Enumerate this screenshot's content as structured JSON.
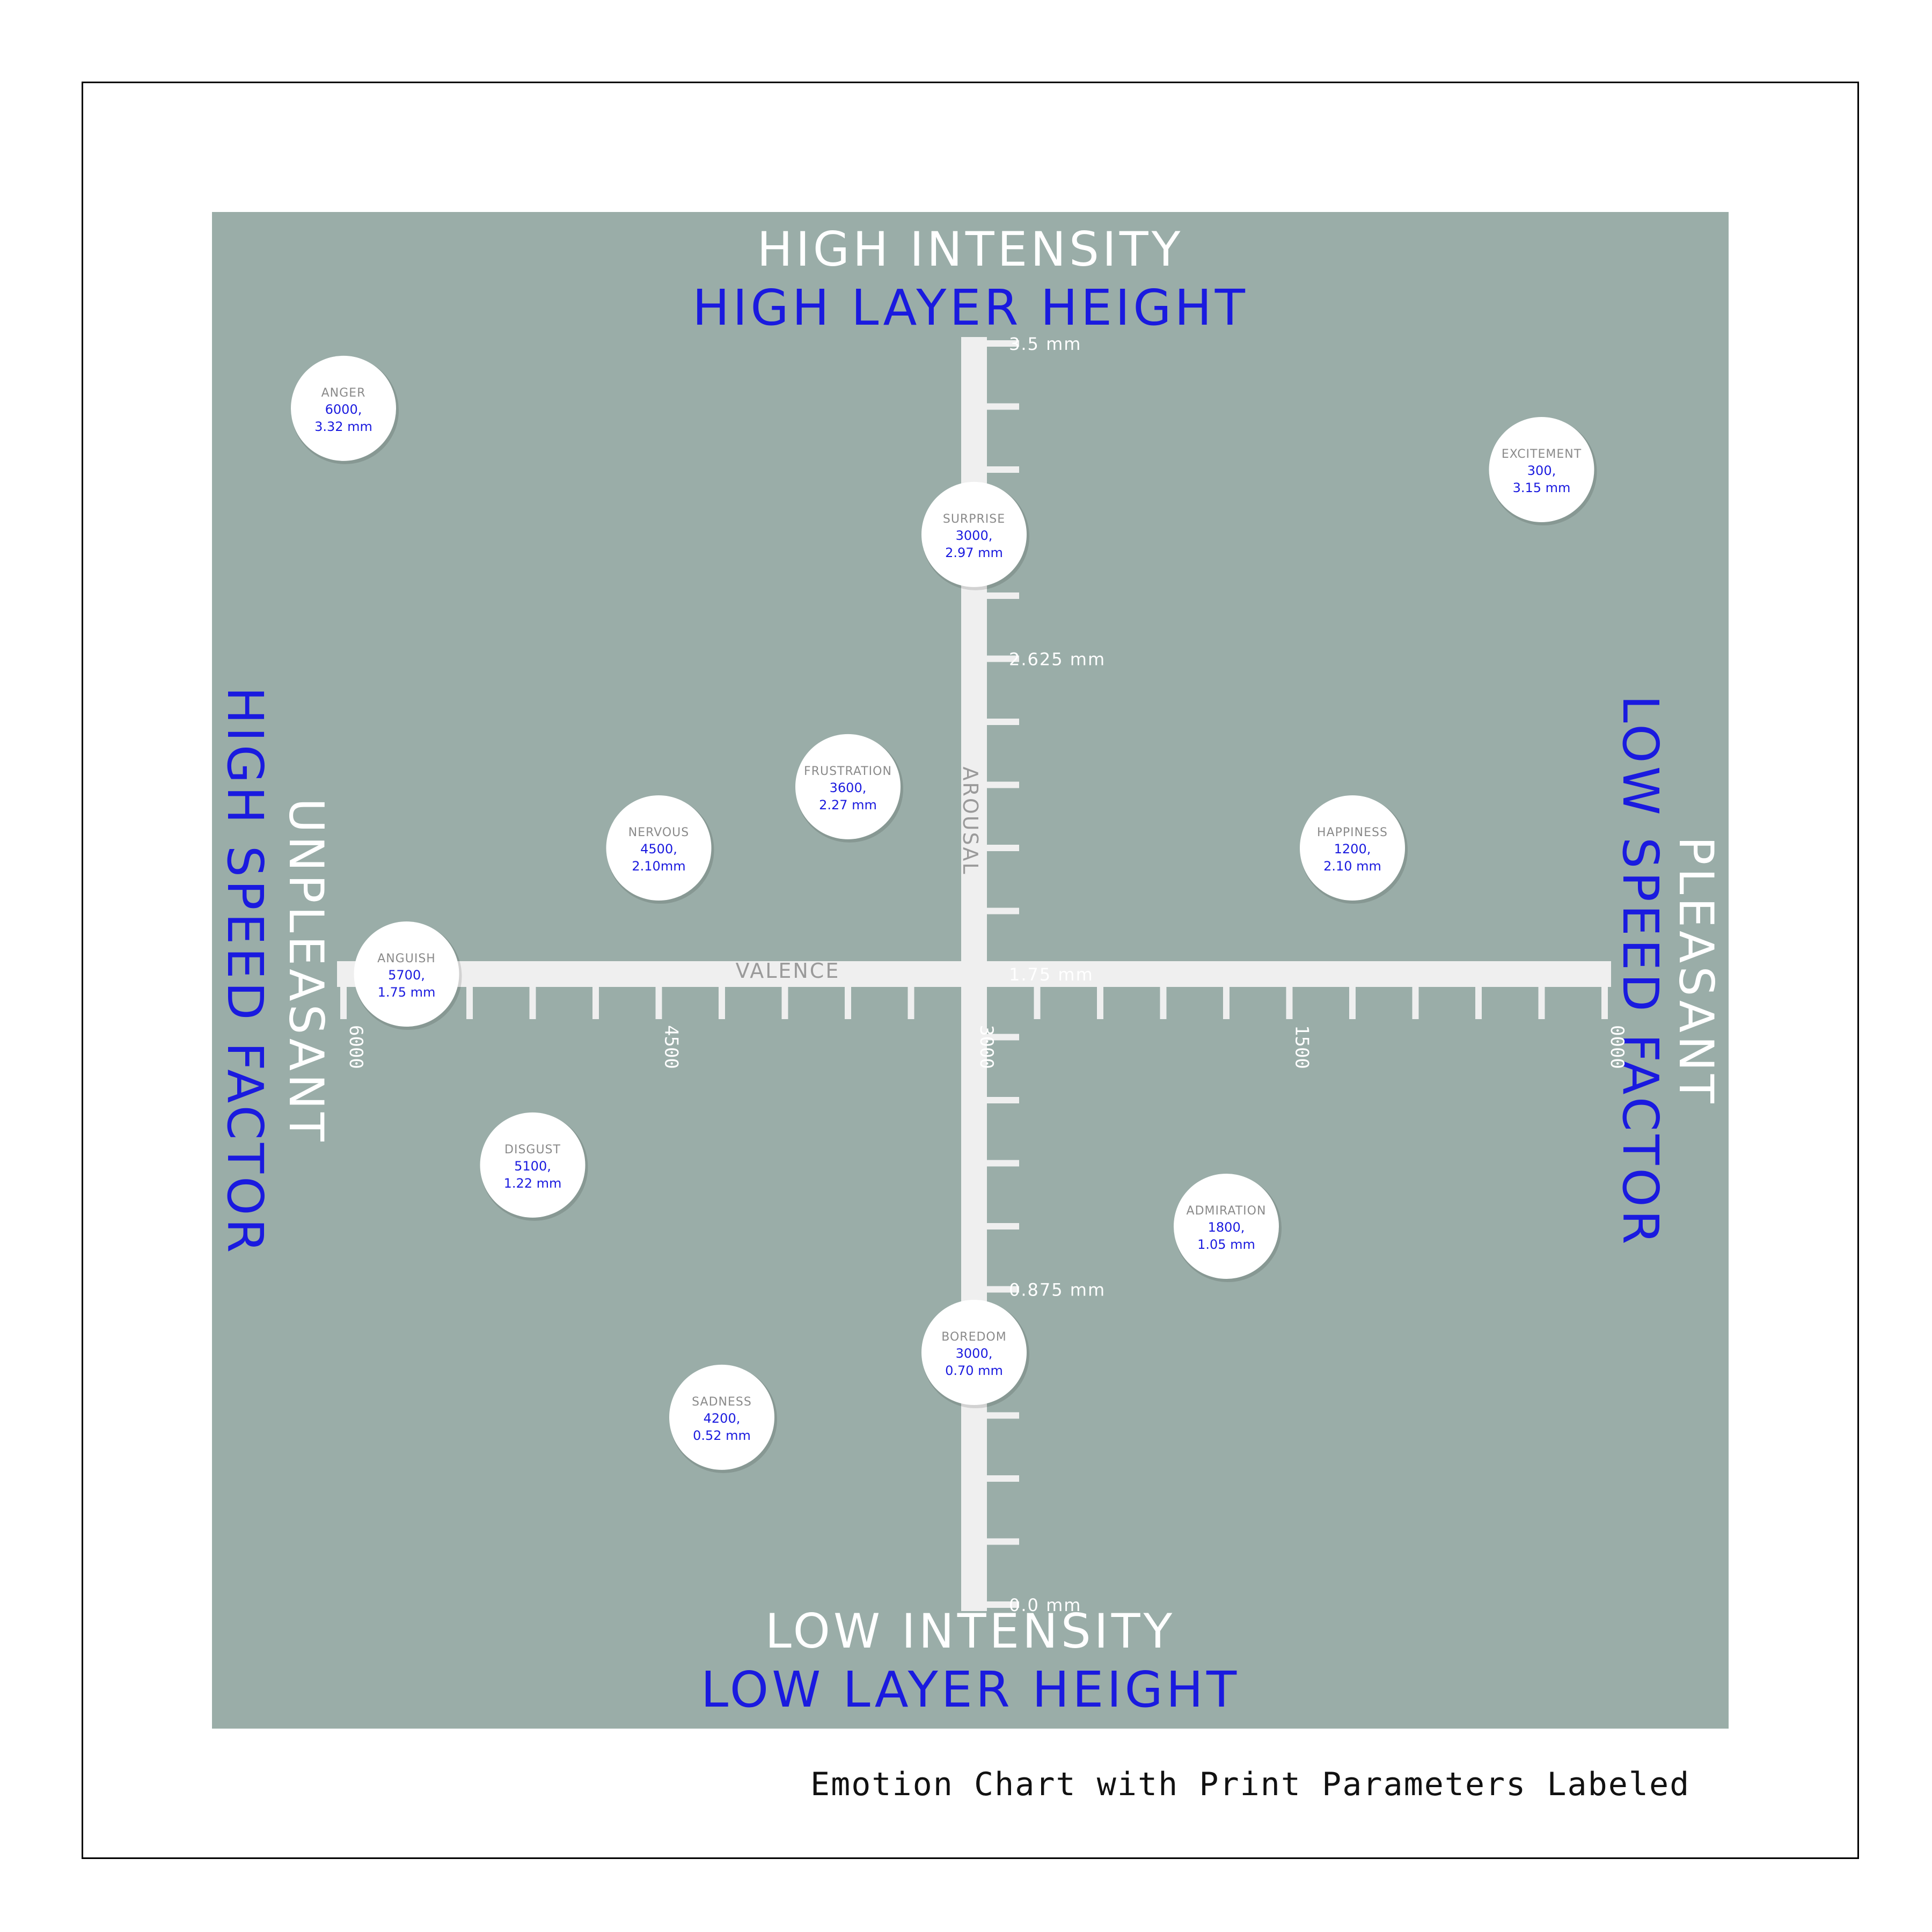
{
  "caption": "Emotion Chart with Print Parameters Labeled",
  "labels": {
    "top": "HIGH INTENSITY",
    "top_param": "HIGH LAYER HEIGHT",
    "bottom": "LOW INTENSITY",
    "bottom_param": "LOW LAYER HEIGHT",
    "left": "UNPLEASANT",
    "left_param": "HIGH SPEED FACTOR",
    "right": "PLEASANT",
    "right_param": "LOW SPEED FACTOR",
    "x_axis": "VALENCE",
    "y_axis": "AROUSAL"
  },
  "colors": {
    "panel": "#9aada8",
    "axis": "#efefef",
    "param_text": "#1a1adf",
    "label_text": "#ffffff",
    "emotion_name": "#8a8a8a",
    "circle": "#ffffff"
  },
  "chart_data": {
    "type": "scatter",
    "x_ticks": [
      "6000",
      "4500",
      "3000",
      "1500",
      "0000"
    ],
    "y_ticks": [
      "3.5 mm",
      "2.625 mm",
      "1.75 mm",
      "0.875 mm",
      "0.0 mm"
    ],
    "xlim": [
      6000,
      0
    ],
    "ylim": [
      0,
      3.5
    ],
    "points": [
      {
        "name": "ANGER",
        "x": 6000,
        "y": 3.32,
        "label_x": "6000,",
        "label_y": "3.32 mm"
      },
      {
        "name": "EXCITEMENT",
        "x": 300,
        "y": 3.15,
        "label_x": "300,",
        "label_y": "3.15 mm"
      },
      {
        "name": "SURPRISE",
        "x": 3000,
        "y": 2.97,
        "label_x": "3000,",
        "label_y": "2.97 mm"
      },
      {
        "name": "FRUSTRATION",
        "x": 3600,
        "y": 2.27,
        "label_x": "3600,",
        "label_y": "2.27 mm"
      },
      {
        "name": "NERVOUS",
        "x": 4500,
        "y": 2.1,
        "label_x": "4500,",
        "label_y": "2.10mm"
      },
      {
        "name": "HAPPINESS",
        "x": 1200,
        "y": 2.1,
        "label_x": "1200,",
        "label_y": "2.10 mm"
      },
      {
        "name": "ANGUISH",
        "x": 5700,
        "y": 1.75,
        "label_x": "5700,",
        "label_y": "1.75 mm"
      },
      {
        "name": "DISGUST",
        "x": 5100,
        "y": 1.22,
        "label_x": "5100,",
        "label_y": "1.22 mm"
      },
      {
        "name": "ADMIRATION",
        "x": 1800,
        "y": 1.05,
        "label_x": "1800,",
        "label_y": "1.05 mm"
      },
      {
        "name": "BOREDOM",
        "x": 3000,
        "y": 0.7,
        "label_x": "3000,",
        "label_y": "0.70 mm"
      },
      {
        "name": "SADNESS",
        "x": 4200,
        "y": 0.52,
        "label_x": "4200,",
        "label_y": "0.52 mm"
      }
    ]
  }
}
